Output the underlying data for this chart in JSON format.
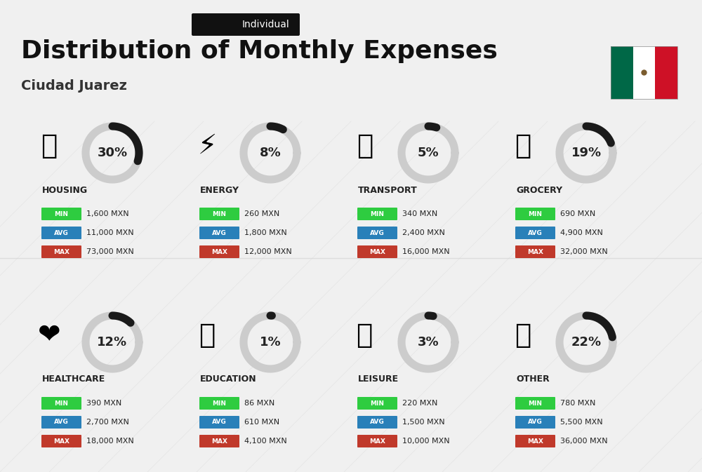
{
  "title": "Distribution of Monthly Expenses",
  "subtitle": "Individual",
  "city": "Ciudad Juarez",
  "bg_color": "#f0f0f0",
  "categories": [
    {
      "name": "HOUSING",
      "pct": 30,
      "min": "1,600 MXN",
      "avg": "11,000 MXN",
      "max": "73,000 MXN",
      "col": 0,
      "row": 0
    },
    {
      "name": "ENERGY",
      "pct": 8,
      "min": "260 MXN",
      "avg": "1,800 MXN",
      "max": "12,000 MXN",
      "col": 1,
      "row": 0
    },
    {
      "name": "TRANSPORT",
      "pct": 5,
      "min": "340 MXN",
      "avg": "2,400 MXN",
      "max": "16,000 MXN",
      "col": 2,
      "row": 0
    },
    {
      "name": "GROCERY",
      "pct": 19,
      "min": "690 MXN",
      "avg": "4,900 MXN",
      "max": "32,000 MXN",
      "col": 3,
      "row": 0
    },
    {
      "name": "HEALTHCARE",
      "pct": 12,
      "min": "390 MXN",
      "avg": "2,700 MXN",
      "max": "18,000 MXN",
      "col": 0,
      "row": 1
    },
    {
      "name": "EDUCATION",
      "pct": 1,
      "min": "86 MXN",
      "avg": "610 MXN",
      "max": "4,100 MXN",
      "col": 1,
      "row": 1
    },
    {
      "name": "LEISURE",
      "pct": 3,
      "min": "220 MXN",
      "avg": "1,500 MXN",
      "max": "10,000 MXN",
      "col": 2,
      "row": 1
    },
    {
      "name": "OTHER",
      "pct": 22,
      "min": "780 MXN",
      "avg": "5,500 MXN",
      "max": "36,000 MXN",
      "col": 3,
      "row": 1
    }
  ],
  "color_min": "#2ecc40",
  "color_avg": "#2980b9",
  "color_max": "#c0392b",
  "label_color": "#ffffff",
  "text_color": "#222222",
  "arc_color_filled": "#1a1a1a",
  "arc_color_empty": "#cccccc",
  "flag_colors": [
    "#006847",
    "#ffffff",
    "#ce1126"
  ]
}
